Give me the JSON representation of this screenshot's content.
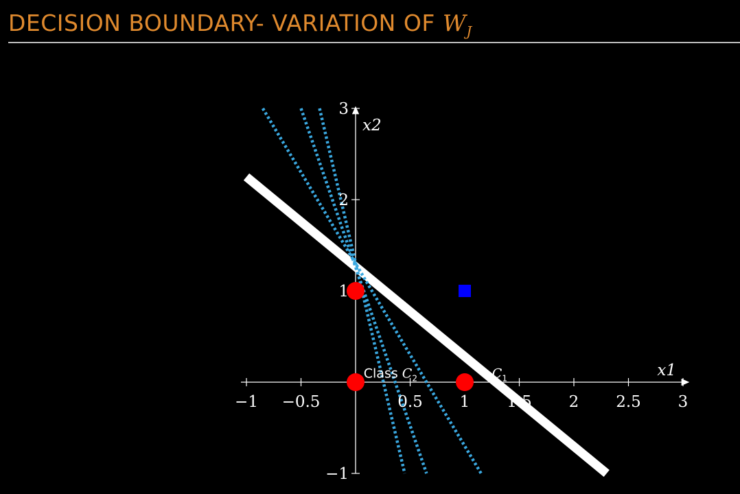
{
  "slide": {
    "title_text": "DECISION BOUNDARY- VARIATION OF ",
    "title_symbol": "W",
    "title_symbol_sub": "J"
  },
  "colors": {
    "title": "#e08a2e",
    "background": "#000000",
    "axis": "#ffffff",
    "boundary": "#ffffff",
    "boundary_variations": "#3aa8e0",
    "class_c2_points": "#ff0000",
    "class_c1_points": "#0000ff"
  },
  "chart_data": {
    "type": "scatter",
    "xlabel": "x1",
    "ylabel": "x2",
    "xlim": [
      -1,
      3
    ],
    "ylim": [
      -1,
      3
    ],
    "xticks": [
      -1,
      -0.5,
      0.5,
      1,
      1.5,
      2,
      2.5,
      3
    ],
    "xtick_labels": [
      "−1",
      "−0.5",
      "0.5",
      "1",
      "1.5",
      "2",
      "2.5",
      "3"
    ],
    "yticks": [
      -1,
      1,
      2,
      3
    ],
    "ytick_labels": [
      "−1",
      "1",
      "2",
      "3"
    ],
    "grid": false,
    "series": [
      {
        "marker": "circle",
        "color": "#ff0000",
        "points": [
          [
            0,
            0
          ],
          [
            0,
            1
          ],
          [
            1,
            0
          ]
        ]
      },
      {
        "marker": "square",
        "color": "#0000ff",
        "points": [
          [
            1,
            1
          ]
        ]
      }
    ],
    "lines": [
      {
        "style": "solid",
        "color": "#ffffff",
        "from": [
          -1,
          2.25
        ],
        "to": [
          2.3,
          -1
        ]
      },
      {
        "style": "dotted",
        "color": "#3aa8e0",
        "from": [
          -0.85,
          3
        ],
        "to": [
          1.15,
          -1
        ]
      },
      {
        "style": "dotted",
        "color": "#3aa8e0",
        "from": [
          -0.5,
          3
        ],
        "to": [
          0.65,
          -1
        ]
      },
      {
        "style": "dotted",
        "color": "#3aa8e0",
        "from": [
          -0.33,
          3
        ],
        "to": [
          0.45,
          -1
        ]
      }
    ],
    "annotations": [
      {
        "text": "Class ",
        "script": "C",
        "sub": "2",
        "x": 0.32,
        "y": 0.05
      },
      {
        "text": "",
        "script": "C",
        "sub": "1",
        "x": 1.32,
        "y": 0.05
      }
    ]
  }
}
